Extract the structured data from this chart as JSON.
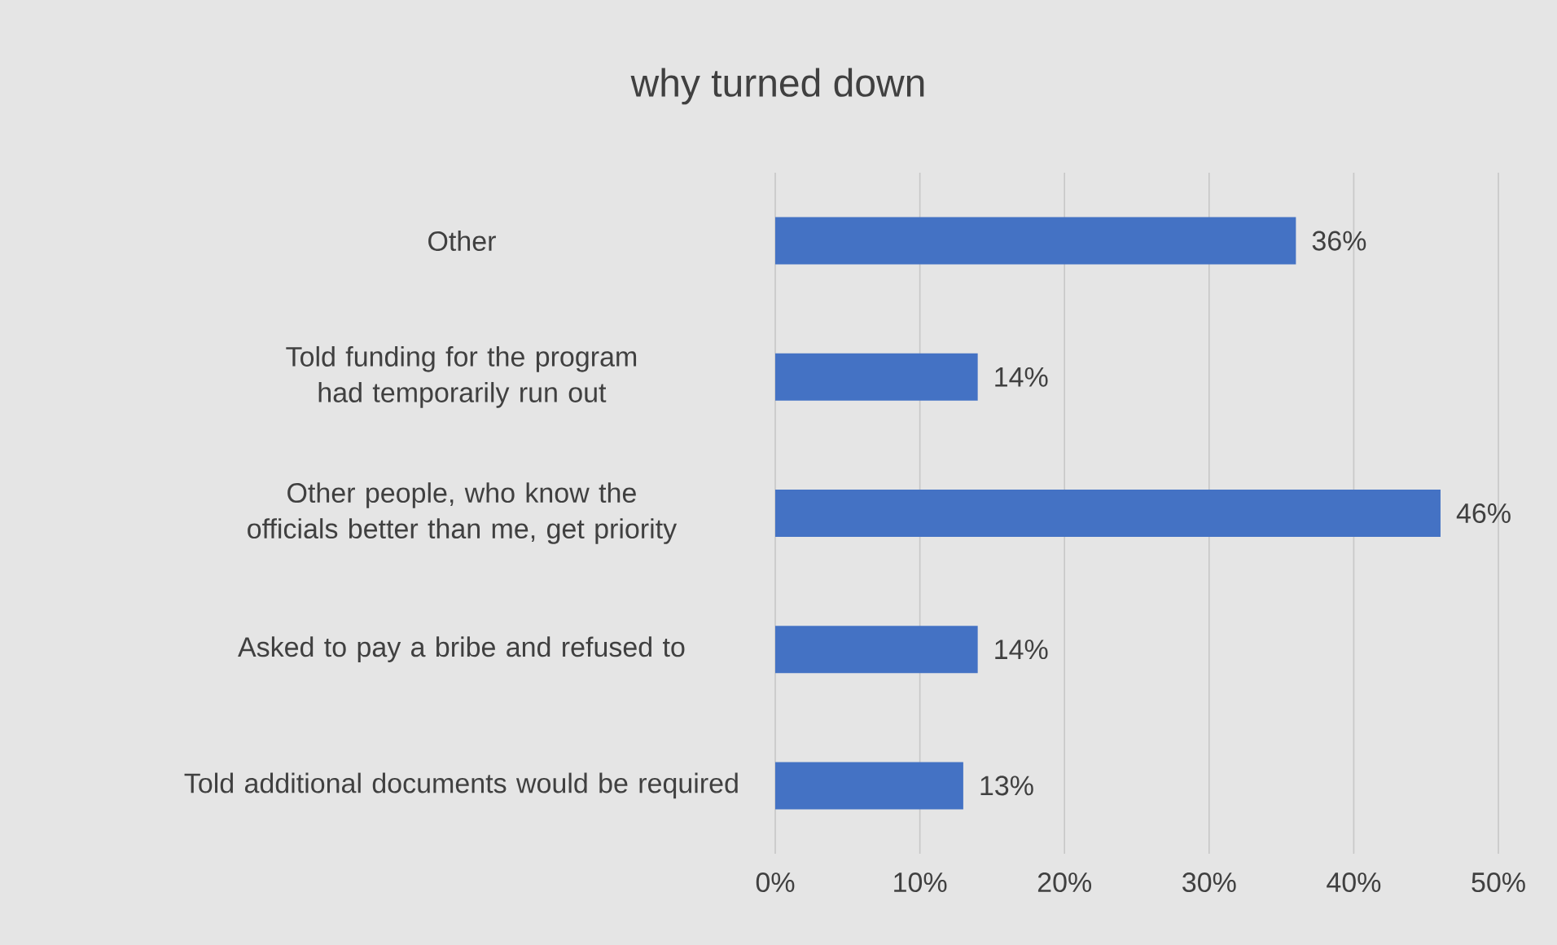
{
  "chart_data": {
    "type": "bar",
    "orientation": "horizontal",
    "title": "why turned down",
    "categories": [
      "Other",
      "Told funding for the program had temporarily run out",
      "Other people, who know the officials better than me, get priority",
      "Asked to pay a bribe and refused to",
      "Told additional documents would be required"
    ],
    "values": [
      36,
      14,
      46,
      14,
      13
    ],
    "value_labels": [
      "36%",
      "14%",
      "46%",
      "14%",
      "13%"
    ],
    "color": "#4472c4",
    "xlim": [
      0,
      50
    ],
    "xticks": [
      {
        "value": 0,
        "label": "0%"
      },
      {
        "value": 10,
        "label": "10%"
      },
      {
        "value": 20,
        "label": "20%"
      },
      {
        "value": 30,
        "label": "30%"
      },
      {
        "value": 40,
        "label": "40%"
      },
      {
        "value": 50,
        "label": "50%"
      }
    ],
    "grid": "x"
  }
}
